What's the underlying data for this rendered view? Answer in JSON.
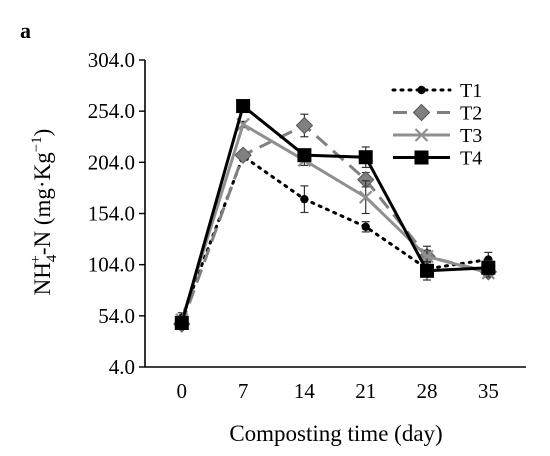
{
  "chart_data": {
    "type": "line",
    "panel_label": "a",
    "xlabel": "Composting time (day)",
    "ylabel": {
      "base": "NH",
      "sub": "4",
      "sup": "+",
      "rest": "-N (mg·Kg",
      "unit_sup": "−1",
      "close": ")"
    },
    "x": [
      0,
      7,
      14,
      21,
      28,
      35
    ],
    "x_ticks": [
      "0",
      "7",
      "14",
      "21",
      "28",
      "35"
    ],
    "ylim": [
      4.0,
      304.0
    ],
    "y_ticks": [
      "4.0",
      "54.0",
      "104.0",
      "154.0",
      "204.0",
      "254.0",
      "304.0"
    ],
    "grid": false,
    "legend_position": "top-right",
    "series": [
      {
        "name": "T1",
        "values": [
          52,
          210,
          168,
          141,
          100,
          109
        ],
        "errors": [
          5,
          4,
          13,
          5,
          4,
          7
        ],
        "color": "#000000",
        "dash": "2 6",
        "width": 3,
        "marker": "circle"
      },
      {
        "name": "T2",
        "values": [
          46,
          211,
          240,
          187,
          112,
          97
        ],
        "errors": [
          3,
          4,
          11,
          7,
          6,
          5
        ],
        "color": "#808080",
        "dash": "14 8",
        "width": 3,
        "marker": "diamond"
      },
      {
        "name": "T3",
        "values": [
          50,
          241,
          206,
          170,
          112,
          96
        ],
        "errors": [
          4,
          3,
          5,
          16,
          10,
          4
        ],
        "color": "#909090",
        "dash": "",
        "width": 3,
        "marker": "x"
      },
      {
        "name": "T4",
        "values": [
          47,
          259,
          211,
          209,
          98,
          101
        ],
        "errors": [
          3,
          3,
          6,
          10,
          9,
          7
        ],
        "color": "#000000",
        "dash": "",
        "width": 3,
        "marker": "square"
      }
    ]
  }
}
